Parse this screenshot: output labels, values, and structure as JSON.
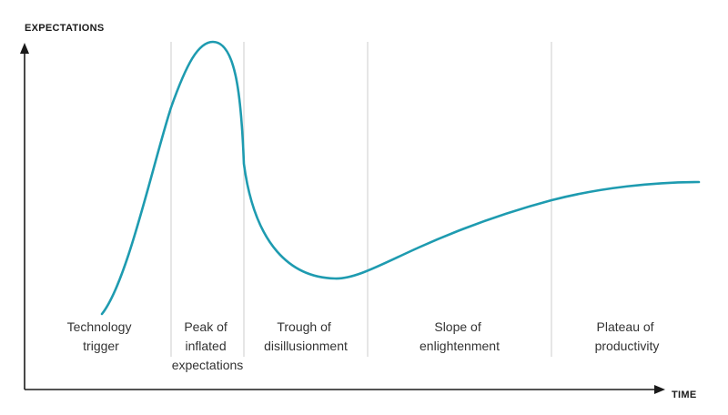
{
  "chart_data": {
    "type": "line",
    "title": "",
    "ylabel": "EXPECTATIONS",
    "xlabel": "TIME",
    "grid": false,
    "legend": "none",
    "curve_color": "#1e9bb0",
    "phases": [
      {
        "id": "technology-trigger",
        "lines": [
          "Technology",
          "trigger"
        ]
      },
      {
        "id": "peak-of-inflated-expectations",
        "lines": [
          "Peak of",
          "inflated",
          "expectations"
        ]
      },
      {
        "id": "trough-of-disillusionment",
        "lines": [
          "Trough of",
          "disillusionment"
        ]
      },
      {
        "id": "slope-of-enlightenment",
        "lines": [
          "Slope of",
          "enlightenment"
        ]
      },
      {
        "id": "plateau-of-productivity",
        "lines": [
          "Plateau of",
          "productivity"
        ]
      }
    ]
  }
}
